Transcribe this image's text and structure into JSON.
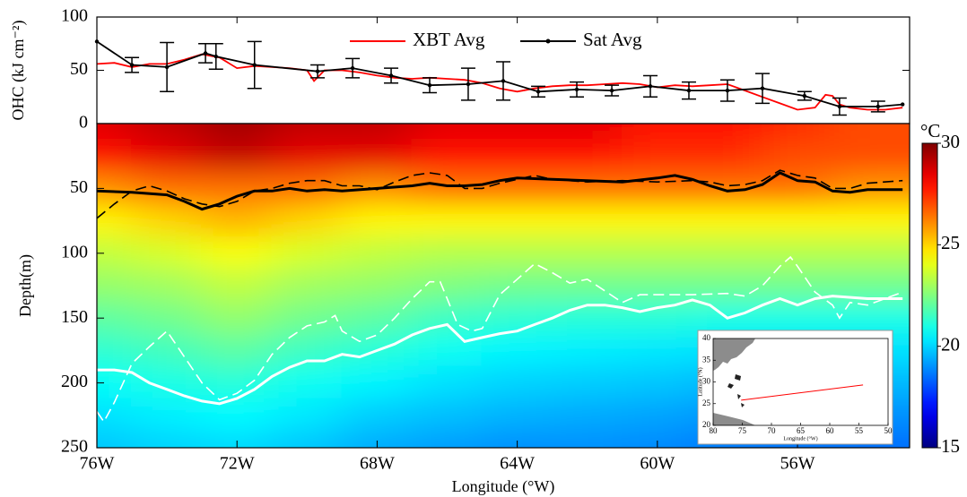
{
  "chart_data": [
    {
      "type": "line",
      "ylabel": "OHC (kJ cm⁻²)",
      "xlim": [
        76,
        52.8
      ],
      "xticks": [
        {
          "value": 76,
          "label": "76W"
        },
        {
          "value": 72,
          "label": "72W"
        },
        {
          "value": 68,
          "label": "68W"
        },
        {
          "value": 64,
          "label": "64W"
        },
        {
          "value": 60,
          "label": "60W"
        },
        {
          "value": 56,
          "label": "56W"
        }
      ],
      "ylim": [
        0,
        100
      ],
      "yticks": [
        0,
        50,
        100
      ],
      "legend": "upper center",
      "series": [
        {
          "name": "XBT Avg",
          "color": "#ff0000",
          "x": [
            76,
            75.5,
            75,
            74.5,
            74,
            73.5,
            73,
            72.5,
            72,
            71.5,
            71,
            70.5,
            70,
            69.8,
            69.5,
            69,
            68.5,
            68,
            67.5,
            67,
            66.5,
            66,
            65.5,
            65,
            64.5,
            64,
            63.5,
            63,
            62.5,
            62,
            61.5,
            61,
            60.5,
            60,
            59.5,
            59,
            58.5,
            58,
            57.5,
            57,
            56.5,
            56,
            55.5,
            55.2,
            55,
            54.8,
            54.5,
            54,
            53.5,
            53
          ],
          "values": [
            56,
            57,
            53,
            56,
            56,
            60,
            65,
            62,
            52,
            54,
            53,
            52,
            50,
            40,
            50,
            50,
            48,
            45,
            43,
            42,
            43,
            42,
            41,
            38,
            33,
            30,
            33,
            35,
            36,
            36,
            37,
            38,
            37,
            34,
            36,
            35,
            36,
            37,
            31,
            25,
            19,
            13,
            15,
            27,
            26,
            18,
            15,
            13,
            13,
            15
          ]
        },
        {
          "name": "Sat Avg",
          "color": "#000000",
          "marker": "o",
          "x": [
            76,
            75,
            74,
            72.9,
            72.6,
            71.5,
            69.7,
            68.7,
            67.6,
            66.5,
            65.4,
            64.4,
            63.4,
            62.3,
            61.3,
            60.2,
            59.1,
            58,
            57,
            55.8,
            54.8,
            53.7,
            53
          ],
          "values": [
            77,
            55,
            53,
            66,
            63,
            55,
            49,
            52,
            45,
            36,
            37,
            40,
            30,
            32,
            31,
            35,
            31,
            31,
            33,
            26,
            16,
            16,
            18
          ],
          "errors": [
            null,
            7,
            23,
            9,
            12,
            22,
            6,
            9,
            7,
            7,
            15,
            18,
            5,
            7,
            5,
            10,
            8,
            10,
            14,
            4,
            8,
            5,
            null
          ]
        }
      ]
    },
    {
      "type": "heatmap",
      "xlabel": "Longitude (°W)",
      "ylabel": "Depth(m)",
      "xlim": [
        76,
        52.8
      ],
      "xticks": [
        {
          "value": 76,
          "label": "76W"
        },
        {
          "value": 72,
          "label": "72W"
        },
        {
          "value": 68,
          "label": "68W"
        },
        {
          "value": 64,
          "label": "64W"
        },
        {
          "value": 60,
          "label": "60W"
        },
        {
          "value": 56,
          "label": "56W"
        }
      ],
      "ylim": [
        0,
        250
      ],
      "y_inverted": true,
      "yticks": [
        50,
        100,
        150,
        200,
        250
      ],
      "colormap": "jet",
      "zlim": [
        15,
        30
      ],
      "zticks": [
        15,
        20,
        25,
        30
      ],
      "zlabel": "°C",
      "x": [
        76,
        74,
        72,
        70,
        68,
        66,
        64,
        62,
        60,
        58,
        56,
        54
      ],
      "y": [
        0,
        25,
        50,
        75,
        100,
        125,
        150,
        175,
        200,
        225,
        250
      ],
      "z": [
        [
          28.5,
          29,
          29.5,
          29,
          29,
          28.5,
          28.5,
          28.5,
          28,
          28,
          27.5,
          27
        ],
        [
          28,
          28.5,
          29,
          28.5,
          28.5,
          28,
          28,
          28,
          27.5,
          27.5,
          27,
          27
        ],
        [
          26,
          26.5,
          26.5,
          26.5,
          26,
          26.5,
          26.5,
          26.5,
          26.5,
          26.5,
          26.5,
          26
        ],
        [
          24.5,
          25,
          25.5,
          25,
          24.5,
          24.5,
          24.5,
          24.5,
          24.5,
          24.5,
          24.5,
          24.5
        ],
        [
          23.5,
          23.8,
          24.3,
          23.8,
          23.5,
          23.3,
          23.3,
          23.3,
          23.3,
          23.3,
          23.3,
          23.3
        ],
        [
          22.8,
          23,
          23.5,
          23,
          22.8,
          22.5,
          22.3,
          22.3,
          22.3,
          22.3,
          22.3,
          22.3
        ],
        [
          22,
          22.3,
          22.8,
          22.3,
          22,
          21.5,
          21.3,
          21.2,
          21.2,
          21,
          21,
          21
        ],
        [
          21.3,
          21.6,
          22,
          21.5,
          21.2,
          20.8,
          20.5,
          20.4,
          20.3,
          20.2,
          20.2,
          20.2
        ],
        [
          20.7,
          21,
          21.2,
          20.8,
          20.5,
          20.2,
          20,
          19.9,
          19.8,
          19.6,
          19.6,
          19.6
        ],
        [
          20.2,
          20.4,
          20.6,
          20.3,
          19.9,
          19.7,
          19.5,
          19.4,
          19.3,
          19.1,
          19.1,
          19
        ],
        [
          19.8,
          20,
          20.1,
          19.8,
          19.4,
          19.2,
          19,
          19,
          18.9,
          18.7,
          18.6,
          18.5
        ]
      ],
      "contours": [
        {
          "color": "#000000",
          "style": "solid",
          "x": [
            76,
            75,
            74,
            73.5,
            73,
            72.5,
            72,
            71.5,
            71,
            70.5,
            70,
            69.5,
            69,
            68,
            67,
            66.5,
            66,
            65.5,
            65,
            64.5,
            64,
            63,
            62,
            61,
            60,
            59.5,
            59,
            58.5,
            58,
            57.5,
            57,
            56.5,
            56,
            55.5,
            55,
            54.5,
            54,
            53
          ],
          "values": [
            52,
            53,
            55,
            60,
            66,
            62,
            56,
            52,
            52,
            50,
            52,
            51,
            52,
            50,
            48,
            46,
            48,
            48,
            47,
            44,
            42,
            43,
            44,
            45,
            42,
            40,
            43,
            48,
            52,
            51,
            47,
            38,
            44,
            45,
            52,
            53,
            51,
            51
          ]
        },
        {
          "color": "#000000",
          "style": "dashed",
          "x": [
            76,
            75.5,
            75,
            74.5,
            74,
            73.5,
            73,
            72.5,
            72,
            71.5,
            71,
            70.5,
            70,
            69.5,
            69,
            68.5,
            68,
            67.5,
            67,
            66.5,
            66,
            65.5,
            65,
            64.5,
            64,
            63.5,
            63,
            62,
            61,
            60,
            59,
            58.5,
            58,
            57.5,
            57,
            56.5,
            56,
            55.5,
            55,
            54.5,
            54,
            53
          ],
          "values": [
            73,
            62,
            52,
            48,
            52,
            58,
            62,
            64,
            60,
            52,
            50,
            46,
            44,
            44,
            48,
            48,
            51,
            45,
            40,
            38,
            40,
            50,
            50,
            46,
            43,
            40,
            43,
            45,
            44,
            45,
            44,
            45,
            48,
            47,
            44,
            36,
            40,
            42,
            50,
            50,
            46,
            44
          ]
        },
        {
          "color": "#ffffff",
          "style": "solid",
          "x": [
            76,
            75.5,
            75,
            74.5,
            74,
            73.5,
            73,
            72.5,
            72,
            71.5,
            71,
            70.5,
            70,
            69.5,
            69,
            68.5,
            68,
            67.5,
            67,
            66.5,
            66,
            65.5,
            65,
            64.5,
            64,
            63.5,
            63,
            62.5,
            62,
            61.5,
            61,
            60.5,
            60,
            59.5,
            59,
            58.5,
            58,
            57.5,
            57,
            56.5,
            56,
            55.5,
            55,
            54,
            53
          ],
          "values": [
            190,
            190,
            192,
            200,
            205,
            210,
            214,
            216,
            212,
            205,
            195,
            188,
            183,
            183,
            178,
            180,
            175,
            170,
            163,
            158,
            155,
            168,
            165,
            162,
            160,
            155,
            150,
            144,
            140,
            140,
            142,
            145,
            142,
            140,
            136,
            140,
            150,
            146,
            140,
            135,
            140,
            135,
            133,
            135,
            135
          ]
        },
        {
          "color": "#ffffff",
          "style": "dashed",
          "x": [
            76,
            75.8,
            75.5,
            75,
            74.5,
            74,
            73.5,
            73,
            72.5,
            72,
            71.5,
            71,
            70.5,
            70,
            69.5,
            69.2,
            69,
            68.5,
            68,
            67.5,
            67,
            66.5,
            66.2,
            66,
            65.7,
            65.3,
            65,
            64.5,
            64,
            63.5,
            63,
            62.5,
            62,
            61,
            60.5,
            60,
            59,
            58,
            57.5,
            57,
            56.5,
            56.2,
            56,
            55.5,
            55,
            54.8,
            54.5,
            54,
            53
          ],
          "values": [
            222,
            230,
            215,
            185,
            172,
            160,
            180,
            200,
            213,
            208,
            198,
            178,
            165,
            156,
            153,
            148,
            160,
            168,
            163,
            150,
            135,
            122,
            122,
            135,
            155,
            160,
            158,
            132,
            120,
            108,
            115,
            123,
            120,
            138,
            132,
            132,
            132,
            131,
            133,
            125,
            110,
            103,
            110,
            130,
            140,
            150,
            138,
            140,
            130
          ]
        }
      ]
    },
    {
      "type": "map",
      "xlabel": "Longitude (°W)",
      "ylabel": "Latitude (°N)",
      "xlim": [
        80,
        50
      ],
      "xticks": [
        80,
        75,
        70,
        65,
        60,
        55,
        50
      ],
      "ylim": [
        20,
        40
      ],
      "yticks": [
        20,
        25,
        30,
        35,
        40
      ],
      "series": [
        {
          "color": "#ff0000",
          "x": [
            75.2,
            54.3
          ],
          "values": [
            25.8,
            29.3
          ]
        }
      ]
    }
  ]
}
